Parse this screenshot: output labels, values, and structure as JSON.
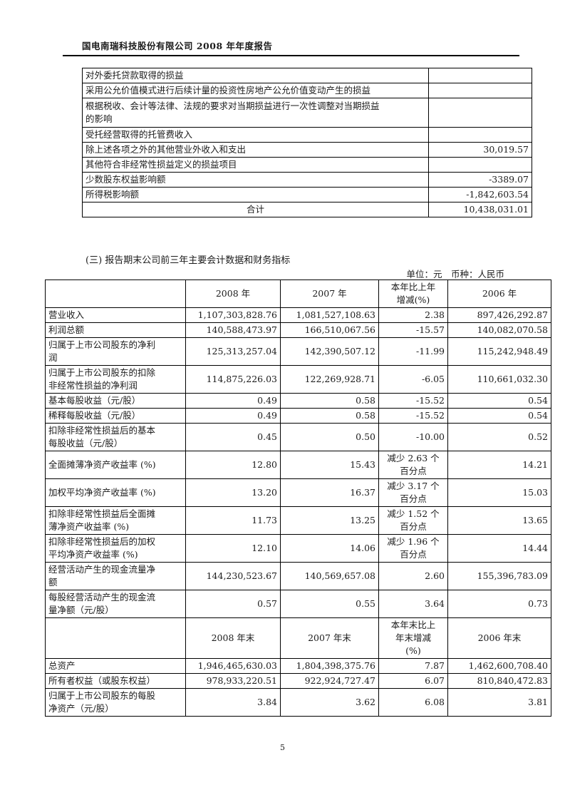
{
  "page": {
    "header_title": "国电南瑞科技股份有限公司 2008 年年度报告",
    "page_number": "5"
  },
  "section": {
    "title": "(三) 报告期末公司前三年主要会计数据和财务指标",
    "unit_note": "单位：元　币种：人民币"
  },
  "table1": {
    "rows": [
      {
        "label": "对外委托贷款取得的损益",
        "value": ""
      },
      {
        "label": "采用公允价值模式进行后续计量的投资性房地产公允价值变动产生的损益",
        "value": ""
      },
      {
        "label": "根据税收、会计等法律、法规的要求对当期损益进行一次性调整对当期损益\n的影响",
        "value": ""
      },
      {
        "label": "受托经营取得的托管费收入",
        "value": ""
      },
      {
        "label": "除上述各项之外的其他营业外收入和支出",
        "value": "30,019.57"
      },
      {
        "label": "其他符合非经常性损益定义的损益项目",
        "value": ""
      },
      {
        "label": "少数股东权益影响额",
        "value": "-3389.07"
      },
      {
        "label": "所得税影响额",
        "value": "-1,842,603.54"
      },
      {
        "label": "合计",
        "value": "10,438,031.01"
      }
    ]
  },
  "table2": {
    "header1": {
      "c0": "",
      "c1": "2008 年",
      "c2": "2007 年",
      "c3": "本年比上年\n增减(%)",
      "c4": "2006 年"
    },
    "rows": [
      {
        "label": "营业收入",
        "y2008": "1,107,303,828.76",
        "y2007": "1,081,527,108.63",
        "chg": "2.38",
        "y2006": "897,426,292.87"
      },
      {
        "label": "利润总额",
        "y2008": "140,588,473.97",
        "y2007": "166,510,067.56",
        "chg": "-15.57",
        "y2006": "140,082,070.58"
      },
      {
        "label": "归属于上市公司股东的净利\n润",
        "y2008": "125,313,257.04",
        "y2007": "142,390,507.12",
        "chg": "-11.99",
        "y2006": "115,242,948.49"
      },
      {
        "label": "归属于上市公司股东的扣除\n非经常性损益的净利润",
        "y2008": "114,875,226.03",
        "y2007": "122,269,928.71",
        "chg": "-6.05",
        "y2006": "110,661,032.30"
      },
      {
        "label": "基本每股收益（元/股）",
        "y2008": "0.49",
        "y2007": "0.58",
        "chg": "-15.52",
        "y2006": "0.54"
      },
      {
        "label": "稀释每股收益（元/股）",
        "y2008": "0.49",
        "y2007": "0.58",
        "chg": "-15.52",
        "y2006": "0.54"
      },
      {
        "label": "扣除非经常性损益后的基本\n每股收益（元/股）",
        "y2008": "0.45",
        "y2007": "0.50",
        "chg": "-10.00",
        "y2006": "0.52"
      },
      {
        "label": "全面摊薄净资产收益率 (%)",
        "y2008": "12.80",
        "y2007": "15.43",
        "chg": "减少 2.63 个\n百分点",
        "y2006": "14.21"
      },
      {
        "label": "加权平均净资产收益率 (%)",
        "y2008": "13.20",
        "y2007": "16.37",
        "chg": "减少 3.17 个\n百分点",
        "y2006": "15.03"
      },
      {
        "label": "扣除非经常性损益后全面摊\n薄净资产收益率 (%)",
        "y2008": "11.73",
        "y2007": "13.25",
        "chg": "减少 1.52 个\n百分点",
        "y2006": "13.65"
      },
      {
        "label": "扣除非经常性损益后的加权\n平均净资产收益率 (%)",
        "y2008": "12.10",
        "y2007": "14.06",
        "chg": "减少 1.96 个\n百分点",
        "y2006": "14.44"
      },
      {
        "label": "经营活动产生的现金流量净\n额",
        "y2008": "144,230,523.67",
        "y2007": "140,569,657.08",
        "chg": "2.60",
        "y2006": "155,396,783.09"
      },
      {
        "label": "每股经营活动产生的现金流\n量净额（元/股）",
        "y2008": "0.57",
        "y2007": "0.55",
        "chg": "3.64",
        "y2006": "0.73"
      }
    ],
    "header2": {
      "c0": "",
      "c1": "2008 年末",
      "c2": "2007 年末",
      "c3": "本年末比上\n年末增减\n(%)",
      "c4": "2006 年末"
    },
    "rows2": [
      {
        "label": "总资产",
        "y2008": "1,946,465,630.03",
        "y2007": "1,804,398,375.76",
        "chg": "7.87",
        "y2006": "1,462,600,708.40"
      },
      {
        "label": "所有者权益（或股东权益）",
        "y2008": "978,933,220.51",
        "y2007": "922,924,727.47",
        "chg": "6.07",
        "y2006": "810,840,472.83"
      },
      {
        "label": "归属于上市公司股东的每股\n净资产（元/股）",
        "y2008": "3.84",
        "y2007": "3.62",
        "chg": "6.08",
        "y2006": "3.81"
      }
    ]
  }
}
